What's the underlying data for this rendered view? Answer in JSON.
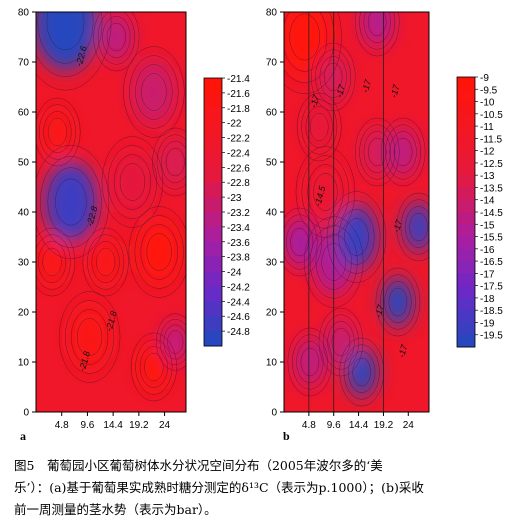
{
  "chart_data": [
    {
      "type": "heatmap",
      "panel_label": "a",
      "title": "",
      "xlabel": "",
      "ylabel": "",
      "xlim": [
        0,
        28
      ],
      "ylim": [
        0,
        80
      ],
      "x_ticks": [
        "4.8",
        "9.6",
        "14.4",
        "19.2",
        "24"
      ],
      "x_tick_values": [
        4.8,
        9.6,
        14.4,
        19.2,
        24
      ],
      "y_ticks": [
        "0",
        "10",
        "20",
        "30",
        "40",
        "50",
        "60",
        "70",
        "80"
      ],
      "y_tick_values": [
        0,
        10,
        20,
        30,
        40,
        50,
        60,
        70,
        80
      ],
      "colorbar_ticks": [
        "-21.4",
        "-21.6",
        "-21.8",
        "-22",
        "-22.2",
        "-22.4",
        "-22.6",
        "-22.8",
        "-23",
        "-23.2",
        "-23.4",
        "-23.6",
        "-23.8",
        "-24",
        "-24.2",
        "-24.4",
        "-24.6",
        "-24.8"
      ],
      "colorbar_range": [
        -24.8,
        -21.4
      ],
      "contour_labels": [
        {
          "text": "-22.6",
          "x": 9.0,
          "y": 71
        },
        {
          "text": "-22.8",
          "x": 11.0,
          "y": 39
        },
        {
          "text": "-21.8",
          "x": 14.6,
          "y": 18
        },
        {
          "text": "-21.8",
          "x": 9.6,
          "y": 10
        }
      ],
      "features": [
        {
          "x": 5.5,
          "y": 78,
          "value": -24.8,
          "r": 6
        },
        {
          "x": 6.5,
          "y": 42,
          "value": -24.6,
          "r": 5
        },
        {
          "x": 15,
          "y": 75,
          "value": -23.2,
          "r": 3
        },
        {
          "x": 22,
          "y": 64,
          "value": -23.0,
          "r": 4
        },
        {
          "x": 18,
          "y": 46,
          "value": -22.6,
          "r": 4
        },
        {
          "x": 4,
          "y": 56,
          "value": -21.6,
          "r": 3
        },
        {
          "x": 23,
          "y": 32,
          "value": -21.4,
          "r": 4
        },
        {
          "x": 13,
          "y": 30,
          "value": -21.6,
          "r": 3
        },
        {
          "x": 3,
          "y": 30,
          "value": -21.6,
          "r": 3
        },
        {
          "x": 26,
          "y": 14,
          "value": -23.2,
          "r": 2.5
        },
        {
          "x": 22,
          "y": 9,
          "value": -21.4,
          "r": 3
        },
        {
          "x": 10,
          "y": 15,
          "value": -21.6,
          "r": 4
        },
        {
          "x": 26,
          "y": 50,
          "value": -22.8,
          "r": 3
        }
      ],
      "grid": false,
      "legend": "colorbar right"
    },
    {
      "type": "heatmap",
      "panel_label": "b",
      "title": "",
      "xlabel": "",
      "ylabel": "",
      "xlim": [
        0,
        28
      ],
      "ylim": [
        0,
        80
      ],
      "x_ticks": [
        "4.8",
        "9.6",
        "14.4",
        "19.2",
        "24"
      ],
      "x_tick_values": [
        4.8,
        9.6,
        14.4,
        19.2,
        24
      ],
      "y_ticks": [
        "0",
        "10",
        "20",
        "30",
        "40",
        "50",
        "60",
        "70",
        "80"
      ],
      "y_tick_values": [
        0,
        10,
        20,
        30,
        40,
        50,
        60,
        70,
        80
      ],
      "colorbar_ticks": [
        "-9",
        "-9.5",
        "-10",
        "-10.5",
        "-11",
        "-11.5",
        "-12",
        "-12.5",
        "-13",
        "-13.5",
        "-14",
        "-14.5",
        "-15",
        "-15.5",
        "-16",
        "-16.5",
        "-17",
        "-17.5",
        "-18",
        "-18.5",
        "-19",
        "-19.5"
      ],
      "colorbar_range": [
        -19.5,
        -9
      ],
      "vertical_lines": [
        4.8,
        9.6,
        19.2
      ],
      "contour_labels": [
        {
          "text": "-17",
          "x": 6.5,
          "y": 62
        },
        {
          "text": "-17",
          "x": 11.5,
          "y": 64
        },
        {
          "text": "-17",
          "x": 16.5,
          "y": 65
        },
        {
          "text": "-17",
          "x": 22,
          "y": 64
        },
        {
          "text": "-14.5",
          "x": 7.5,
          "y": 43
        },
        {
          "text": "-17",
          "x": 22.5,
          "y": 37
        },
        {
          "text": "-17",
          "x": 19.0,
          "y": 20
        },
        {
          "text": "-17",
          "x": 23.5,
          "y": 12
        }
      ],
      "features": [
        {
          "x": 4,
          "y": 75,
          "value": -9.0,
          "r": 5
        },
        {
          "x": 9.5,
          "y": 67,
          "value": -13.5,
          "r": 3
        },
        {
          "x": 6.8,
          "y": 57,
          "value": -12.5,
          "r": 3
        },
        {
          "x": 8,
          "y": 44,
          "value": -12.0,
          "r": 4
        },
        {
          "x": 9.6,
          "y": 30,
          "value": -15.0,
          "r": 4
        },
        {
          "x": 11,
          "y": 14,
          "value": -14.0,
          "r": 3
        },
        {
          "x": 5,
          "y": 10,
          "value": -14.5,
          "r": 3
        },
        {
          "x": 18,
          "y": 52,
          "value": -13.5,
          "r": 3
        },
        {
          "x": 23,
          "y": 52,
          "value": -14.5,
          "r": 3
        },
        {
          "x": 3,
          "y": 34,
          "value": -15.5,
          "r": 3
        },
        {
          "x": 18,
          "y": 78,
          "value": -15.0,
          "r": 3
        },
        {
          "x": 22,
          "y": 22,
          "value": -19.5,
          "r": 3
        },
        {
          "x": 26,
          "y": 37,
          "value": -19.0,
          "r": 3
        },
        {
          "x": 14,
          "y": 35,
          "value": -19.0,
          "r": 4
        },
        {
          "x": 15,
          "y": 8,
          "value": -19.5,
          "r": 3
        }
      ],
      "grid": false,
      "legend": "colorbar right"
    }
  ],
  "caption": {
    "line1": "图5　葡萄园小区葡萄树体水分状况空间分布（2005年波尔多的‘美",
    "line2": "乐’）：(a)基于葡萄果实成熟时糖分测定的δ¹³C（表示为p.1000）；(b)采收",
    "line3": "前一周测量的茎水势（表示为bar）。"
  }
}
